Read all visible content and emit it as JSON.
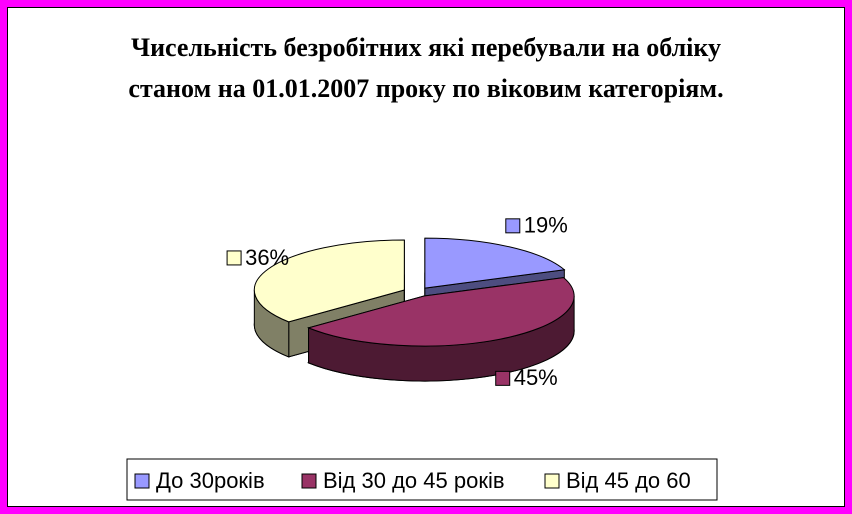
{
  "chart_data": {
    "type": "pie",
    "title": "Чисельність безробітних які перебували на обліку станом на 01.01.2007 проку по віковим категоріям.",
    "categories": [
      "До 30років",
      "Від 30 до 45 років",
      "Від 45 до 60"
    ],
    "values": [
      19,
      45,
      36
    ],
    "value_labels": [
      "19%",
      "45%",
      "36%"
    ],
    "colors": [
      "#9999ff",
      "#993366",
      "#ffffcc"
    ],
    "legend": "bottom"
  }
}
